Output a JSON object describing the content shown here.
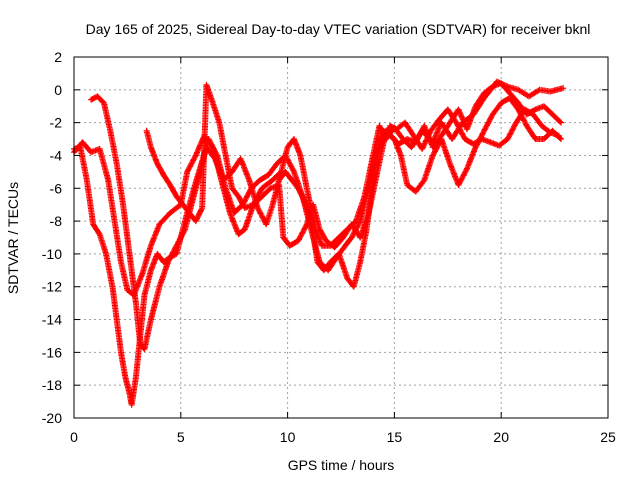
{
  "chart_data": {
    "type": "scatter",
    "title": "Day 165 of 2025, Sidereal Day-to-day VTEC variation (SDTVAR) for receiver bknl",
    "xlabel": "GPS time / hours",
    "ylabel": "SDTVAR / TECUs",
    "xlim": [
      0,
      25
    ],
    "ylim": [
      -20,
      2
    ],
    "xticks": [
      0,
      5,
      10,
      15,
      20,
      25
    ],
    "yticks": [
      -20,
      -18,
      -16,
      -14,
      -12,
      -10,
      -8,
      -6,
      -4,
      -2,
      0,
      2
    ],
    "grid": true,
    "marker": "plus",
    "series": [
      {
        "color": "#ff0000",
        "points": [
          [
            0.0,
            -3.8
          ],
          [
            0.4,
            -3.2
          ],
          [
            0.8,
            -3.8
          ],
          [
            1.2,
            -3.6
          ],
          [
            1.6,
            -5.5
          ],
          [
            1.9,
            -8.0
          ],
          [
            2.2,
            -10.5
          ],
          [
            2.5,
            -12.2
          ],
          [
            2.8,
            -12.5
          ],
          [
            3.2,
            -11.2
          ],
          [
            3.6,
            -9.5
          ],
          [
            4.0,
            -8.2
          ],
          [
            4.5,
            -7.5
          ],
          [
            5.0,
            -7.0
          ],
          [
            5.3,
            -5.0
          ],
          [
            5.7,
            -4.0
          ],
          [
            6.1,
            -2.8
          ],
          [
            6.5,
            -3.5
          ],
          [
            6.9,
            -5.5
          ],
          [
            7.3,
            -7.5
          ],
          [
            7.7,
            -8.8
          ],
          [
            8.0,
            -8.5
          ],
          [
            8.4,
            -7.0
          ],
          [
            8.8,
            -6.0
          ],
          [
            9.3,
            -5.5
          ],
          [
            9.7,
            -5.0
          ],
          [
            10.0,
            -3.5
          ],
          [
            10.3,
            -3.0
          ],
          [
            10.6,
            -4.0
          ],
          [
            10.9,
            -6.0
          ],
          [
            11.3,
            -8.5
          ],
          [
            11.6,
            -9.5
          ],
          [
            12.0,
            -9.5
          ],
          [
            12.4,
            -9.0
          ],
          [
            12.8,
            -8.5
          ],
          [
            13.2,
            -8.0
          ],
          [
            13.6,
            -6.5
          ],
          [
            14.0,
            -4.0
          ],
          [
            14.3,
            -2.2
          ],
          [
            14.6,
            -3.0
          ],
          [
            15.0,
            -2.3
          ],
          [
            15.4,
            -3.0
          ],
          [
            15.8,
            -3.5
          ],
          [
            16.3,
            -2.5
          ],
          [
            16.8,
            -3.2
          ],
          [
            17.2,
            -2.0
          ],
          [
            17.7,
            -3.0
          ],
          [
            18.2,
            -2.0
          ],
          [
            18.7,
            -1.5
          ],
          [
            19.2,
            -0.5
          ],
          [
            19.8,
            0.5
          ],
          [
            20.3,
            0.2
          ],
          [
            20.8,
            0.0
          ],
          [
            21.3,
            -0.4
          ],
          [
            21.8,
            0.0
          ],
          [
            22.3,
            -0.1
          ],
          [
            22.9,
            0.1
          ]
        ]
      },
      {
        "color": "#ff0000",
        "points": [
          [
            0.8,
            -0.6
          ],
          [
            1.1,
            -0.4
          ],
          [
            1.4,
            -0.8
          ],
          [
            1.7,
            -2.5
          ],
          [
            2.0,
            -4.5
          ],
          [
            2.3,
            -7.0
          ],
          [
            2.6,
            -10.0
          ],
          [
            2.9,
            -13.0
          ],
          [
            3.1,
            -15.5
          ],
          [
            3.3,
            -15.8
          ],
          [
            3.6,
            -14.0
          ],
          [
            4.0,
            -12.0
          ],
          [
            4.4,
            -10.5
          ],
          [
            4.8,
            -9.5
          ],
          [
            5.2,
            -8.5
          ],
          [
            5.6,
            -6.5
          ],
          [
            6.0,
            -4.5
          ],
          [
            6.3,
            -3.0
          ],
          [
            6.7,
            -4.0
          ],
          [
            7.1,
            -6.0
          ],
          [
            7.5,
            -7.5
          ],
          [
            7.9,
            -7.0
          ],
          [
            8.3,
            -6.0
          ],
          [
            8.7,
            -5.5
          ],
          [
            9.1,
            -5.2
          ],
          [
            9.5,
            -4.5
          ],
          [
            9.9,
            -4.0
          ],
          [
            10.3,
            -5.0
          ],
          [
            10.7,
            -6.5
          ],
          [
            11.1,
            -8.5
          ],
          [
            11.5,
            -10.5
          ],
          [
            11.9,
            -11.0
          ],
          [
            12.3,
            -10.2
          ],
          [
            12.7,
            -9.5
          ],
          [
            13.0,
            -9.0
          ],
          [
            13.4,
            -8.0
          ],
          [
            13.8,
            -6.0
          ],
          [
            14.2,
            -3.5
          ],
          [
            14.5,
            -2.5
          ],
          [
            14.8,
            -2.8
          ],
          [
            15.2,
            -3.3
          ],
          [
            15.6,
            -3.0
          ],
          [
            16.0,
            -3.2
          ],
          [
            16.4,
            -2.2
          ],
          [
            16.8,
            -3.5
          ],
          [
            17.2,
            -2.8
          ],
          [
            17.6,
            -2.0
          ],
          [
            18.0,
            -1.2
          ],
          [
            18.4,
            -2.4
          ],
          [
            18.8,
            -1.0
          ],
          [
            19.2,
            -0.2
          ],
          [
            19.6,
            0.2
          ],
          [
            20.0,
            0.4
          ],
          [
            20.4,
            -0.2
          ],
          [
            20.8,
            -0.8
          ],
          [
            21.2,
            -1.5
          ],
          [
            21.6,
            -1.2
          ],
          [
            22.0,
            -1.0
          ],
          [
            22.4,
            -1.5
          ],
          [
            22.8,
            -2.0
          ]
        ]
      },
      {
        "color": "#ff0000",
        "points": [
          [
            0.0,
            -3.6
          ],
          [
            0.3,
            -3.5
          ],
          [
            0.6,
            -5.5
          ],
          [
            0.9,
            -8.2
          ],
          [
            1.2,
            -8.8
          ],
          [
            1.5,
            -10.0
          ],
          [
            1.8,
            -12.0
          ],
          [
            2.0,
            -14.0
          ],
          [
            2.2,
            -16.0
          ],
          [
            2.4,
            -17.5
          ],
          [
            2.6,
            -18.5
          ],
          [
            2.7,
            -19.2
          ],
          [
            2.9,
            -17.5
          ],
          [
            3.1,
            -15.0
          ],
          [
            3.3,
            -12.5
          ],
          [
            3.6,
            -11.0
          ],
          [
            3.9,
            -10.0
          ],
          [
            4.2,
            -10.5
          ],
          [
            4.5,
            -10.2
          ],
          [
            4.8,
            -10.0
          ],
          [
            5.1,
            -8.5
          ],
          [
            5.4,
            -7.0
          ],
          [
            5.8,
            -5.2
          ],
          [
            6.2,
            -3.5
          ],
          [
            6.6,
            -4.2
          ],
          [
            7.0,
            -5.5
          ],
          [
            7.4,
            -5.0
          ],
          [
            7.8,
            -4.2
          ],
          [
            8.2,
            -5.5
          ],
          [
            8.6,
            -7.2
          ],
          [
            9.0,
            -8.2
          ],
          [
            9.3,
            -7.0
          ],
          [
            9.6,
            -5.5
          ],
          [
            9.9,
            -5.0
          ],
          [
            10.2,
            -5.5
          ],
          [
            10.5,
            -6.0
          ],
          [
            10.8,
            -6.8
          ],
          [
            11.1,
            -8.0
          ],
          [
            11.4,
            -10.5
          ],
          [
            11.7,
            -11.0
          ],
          [
            12.0,
            -10.5
          ],
          [
            12.4,
            -10.0
          ],
          [
            12.8,
            -11.5
          ],
          [
            13.1,
            -12.0
          ],
          [
            13.4,
            -10.5
          ],
          [
            13.7,
            -8.5
          ],
          [
            14.0,
            -5.5
          ],
          [
            14.3,
            -3.5
          ],
          [
            14.6,
            -2.5
          ],
          [
            15.0,
            -3.0
          ],
          [
            15.3,
            -4.0
          ],
          [
            15.6,
            -5.8
          ],
          [
            16.0,
            -6.2
          ],
          [
            16.4,
            -5.5
          ],
          [
            16.8,
            -4.0
          ],
          [
            17.2,
            -3.0
          ],
          [
            17.6,
            -4.5
          ],
          [
            18.0,
            -5.8
          ],
          [
            18.4,
            -4.8
          ],
          [
            18.8,
            -3.5
          ],
          [
            19.2,
            -2.5
          ],
          [
            19.6,
            -1.5
          ],
          [
            20.0,
            -0.8
          ],
          [
            20.4,
            -0.5
          ],
          [
            20.8,
            -1.2
          ],
          [
            21.2,
            -2.2
          ],
          [
            21.6,
            -3.0
          ],
          [
            22.0,
            -3.0
          ],
          [
            22.4,
            -2.5
          ],
          [
            22.8,
            -3.0
          ]
        ]
      },
      {
        "color": "#ff0000",
        "points": [
          [
            3.4,
            -2.5
          ],
          [
            3.6,
            -3.5
          ],
          [
            3.9,
            -4.5
          ],
          [
            4.2,
            -5.2
          ],
          [
            4.5,
            -5.8
          ],
          [
            4.8,
            -6.5
          ],
          [
            5.1,
            -7.0
          ],
          [
            5.4,
            -7.5
          ],
          [
            5.7,
            -8.0
          ],
          [
            6.0,
            -7.2
          ],
          [
            6.2,
            0.3
          ],
          [
            6.5,
            -0.8
          ],
          [
            6.8,
            -2.0
          ],
          [
            7.1,
            -4.0
          ],
          [
            7.4,
            -6.0
          ],
          [
            7.7,
            -6.5
          ],
          [
            8.0,
            -7.2
          ],
          [
            8.4,
            -7.0
          ],
          [
            8.8,
            -6.5
          ],
          [
            9.2,
            -6.0
          ],
          [
            9.6,
            -5.8
          ],
          [
            9.8,
            -9.0
          ],
          [
            10.1,
            -9.5
          ],
          [
            10.5,
            -9.2
          ],
          [
            10.9,
            -8.2
          ],
          [
            11.2,
            -7.0
          ],
          [
            11.5,
            -8.5
          ],
          [
            11.8,
            -9.2
          ],
          [
            12.2,
            -9.6
          ],
          [
            12.6,
            -9.0
          ],
          [
            13.0,
            -8.2
          ],
          [
            13.4,
            -9.0
          ],
          [
            13.8,
            -7.5
          ],
          [
            14.2,
            -5.0
          ],
          [
            14.5,
            -3.2
          ],
          [
            14.8,
            -2.2
          ],
          [
            15.1,
            -2.4
          ],
          [
            15.5,
            -2.0
          ],
          [
            15.9,
            -2.8
          ],
          [
            16.3,
            -3.6
          ],
          [
            16.7,
            -2.5
          ],
          [
            17.1,
            -1.8
          ],
          [
            17.5,
            -1.2
          ],
          [
            17.9,
            -2.0
          ],
          [
            18.3,
            -3.0
          ],
          [
            18.7,
            -3.3
          ],
          [
            19.1,
            -3.0
          ],
          [
            19.5,
            -3.2
          ],
          [
            19.9,
            -3.4
          ],
          [
            20.3,
            -3.0
          ],
          [
            20.7,
            -2.0
          ],
          [
            21.1,
            -1.2
          ],
          [
            21.5,
            -1.5
          ],
          [
            21.9,
            -2.2
          ],
          [
            22.3,
            -2.6
          ],
          [
            22.7,
            -2.8
          ]
        ]
      }
    ]
  }
}
